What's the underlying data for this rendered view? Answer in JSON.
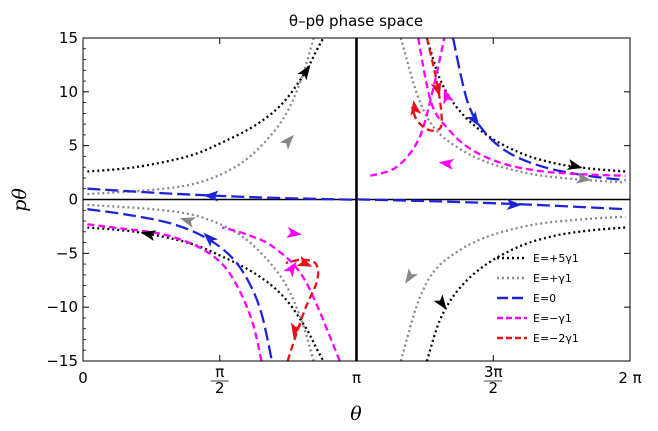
{
  "chart_data": {
    "type": "line",
    "title": "θ–pθ phase space",
    "xlabel": "θ",
    "ylabel": "pθ",
    "xlim": [
      0,
      6.2832
    ],
    "ylim": [
      -15,
      15
    ],
    "x_ticks": [
      {
        "value": 0,
        "label": "0"
      },
      {
        "value": 1.5708,
        "label": "π/2"
      },
      {
        "value": 3.1416,
        "label": "π"
      },
      {
        "value": 4.7124,
        "label": "3π/2"
      },
      {
        "value": 6.2832,
        "label": "2 π"
      }
    ],
    "y_ticks": [
      -15,
      -10,
      -5,
      0,
      5,
      10,
      15
    ],
    "legend_position": "bottom-right",
    "series": [
      {
        "name": "E=+5γ1",
        "color": "#000000",
        "dash": "dotted",
        "curves": [
          {
            "x": [
              0.05,
              0.6,
              1.2,
              1.6,
              2.0,
              2.3,
              2.55,
              2.68,
              2.76
            ],
            "y": [
              2.6,
              3.0,
              4.0,
              5.3,
              7.0,
              9.0,
              11.8,
              13.8,
              15
            ]
          },
          {
            "x": [
              3.95,
              4.1,
              4.3,
              4.6,
              5.0,
              5.4,
              5.8,
              6.23
            ],
            "y": [
              15,
              11.2,
              8.5,
              6.2,
              4.4,
              3.4,
              2.9,
              2.6
            ]
          },
          {
            "x": [
              0.05,
              0.6,
              1.2,
              1.6,
              2.0,
              2.3,
              2.55,
              2.68,
              2.76
            ],
            "y": [
              -2.6,
              -3.0,
              -4.0,
              -5.3,
              -7.0,
              -9.0,
              -11.8,
              -13.8,
              -15
            ]
          },
          {
            "x": [
              3.95,
              4.1,
              4.3,
              4.6,
              5.0,
              5.4,
              5.8,
              6.23
            ],
            "y": [
              -15,
              -11.2,
              -8.5,
              -6.2,
              -4.4,
              -3.4,
              -2.9,
              -2.6
            ]
          }
        ],
        "arrows": [
          {
            "at": [
              2.5,
              11.2
            ],
            "to": [
              2.62,
              12.6
            ]
          },
          {
            "at": [
              5.55,
              3.3
            ],
            "to": [
              5.75,
              2.9
            ]
          },
          {
            "at": [
              0.85,
              -3.4
            ],
            "to": [
              0.65,
              -3.0
            ]
          },
          {
            "at": [
              4.05,
              -8.8
            ],
            "to": [
              4.2,
              -10.5
            ]
          }
        ]
      },
      {
        "name": "E=+γ1",
        "color": "#888888",
        "dash": "dotted",
        "curves": [
          {
            "x": [
              0.05,
              0.8,
              1.3,
              1.7,
              2.0,
              2.3,
              2.5,
              2.65
            ],
            "y": [
              0.5,
              0.9,
              1.5,
              2.8,
              4.6,
              7.5,
              11.0,
              15
            ]
          },
          {
            "x": [
              3.65,
              3.85,
              4.05,
              4.35,
              4.7,
              5.2,
              5.8,
              6.23
            ],
            "y": [
              15,
              9.5,
              6.5,
              4.6,
              3.3,
              2.3,
              1.8,
              1.6
            ]
          },
          {
            "x": [
              0.05,
              0.8,
              1.3,
              1.7,
              2.0,
              2.3,
              2.5,
              2.65
            ],
            "y": [
              -0.5,
              -0.9,
              -1.5,
              -2.8,
              -4.6,
              -7.5,
              -11.0,
              -15
            ]
          },
          {
            "x": [
              3.65,
              3.85,
              4.05,
              4.35,
              4.7,
              5.2,
              5.8,
              6.23
            ],
            "y": [
              -15,
              -9.5,
              -6.5,
              -4.6,
              -3.3,
              -2.3,
              -1.8,
              -1.6
            ]
          }
        ],
        "arrows": [
          {
            "at": [
              2.3,
              4.9
            ],
            "to": [
              2.42,
              6.0
            ]
          },
          {
            "at": [
              5.65,
              2.0
            ],
            "to": [
              5.85,
              1.8
            ]
          },
          {
            "at": [
              1.3,
              -2.2
            ],
            "to": [
              1.1,
              -1.7
            ]
          },
          {
            "at": [
              3.8,
              -6.6
            ],
            "to": [
              3.7,
              -7.8
            ]
          }
        ]
      },
      {
        "name": "E=0",
        "color": "#1f24d9",
        "dash": "long",
        "curves": [
          {
            "x": [
              0.05,
              1.0,
              2.0,
              3.0,
              3.2,
              4.2,
              5.2,
              6.23
            ],
            "y": [
              1.0,
              0.55,
              0.2,
              0.0,
              0.0,
              -0.2,
              -0.5,
              -0.9
            ]
          },
          {
            "x": [
              4.25,
              4.42,
              4.62,
              4.9,
              5.3,
              5.8,
              6.23
            ],
            "y": [
              15,
              9.0,
              6.2,
              4.3,
              3.0,
              2.2,
              1.8
            ]
          },
          {
            "x": [
              0.05,
              0.5,
              1.0,
              1.4,
              1.7,
              1.9,
              2.05,
              2.17
            ],
            "y": [
              -0.9,
              -1.4,
              -2.2,
              -3.5,
              -5.3,
              -7.6,
              -10.6,
              -15
            ]
          }
        ],
        "arrows": [
          {
            "at": [
              1.6,
              0.3
            ],
            "to": [
              1.35,
              0.38
            ]
          },
          {
            "at": [
              4.8,
              -0.45
            ],
            "to": [
              5.1,
              -0.52
            ]
          },
          {
            "at": [
              4.45,
              8.0
            ],
            "to": [
              4.55,
              6.8
            ]
          },
          {
            "at": [
              1.5,
              -4.0
            ],
            "to": [
              1.4,
              -3.2
            ]
          }
        ]
      },
      {
        "name": "E=−γ1",
        "color": "#ff00ff",
        "dash": "dashed",
        "curves": [
          {
            "x": [
              3.85,
              4.0,
              4.2,
              4.45,
              4.8,
              5.2,
              5.6,
              6.23
            ],
            "y": [
              15,
              9.0,
              6.5,
              4.7,
              3.4,
              2.7,
              2.4,
              2.2
            ]
          },
          {
            "x": [
              0.05,
              0.45,
              0.9,
              1.3,
              1.6,
              1.8,
              1.95,
              2.05
            ],
            "y": [
              -2.3,
              -2.7,
              -3.2,
              -4.3,
              -6.0,
              -8.5,
              -11.5,
              -15
            ]
          },
          {
            "x": [
              3.3,
              3.6,
              3.85,
              4.0,
              4.15
            ],
            "y": [
              2.2,
              3.0,
              5.5,
              9.5,
              15
            ]
          },
          {
            "x": [
              2.95,
              2.55,
              2.2,
              1.9,
              1.6
            ],
            "y": [
              -15,
              -7.5,
              -4.5,
              -3.3,
              -2.6
            ]
          }
        ],
        "arrows": [
          {
            "at": [
              4.3,
              3.2
            ],
            "to": [
              4.05,
              3.5
            ]
          },
          {
            "at": [
              2.3,
              -3.0
            ],
            "to": [
              2.55,
              -3.3
            ]
          },
          {
            "at": [
              4.2,
              9.0
            ],
            "to": [
              4.15,
              10.2
            ]
          },
          {
            "at": [
              2.35,
              -7.0
            ],
            "to": [
              2.45,
              -5.8
            ]
          }
        ]
      },
      {
        "name": "E=−2γ1",
        "color": "#e8111a",
        "dash": "dashed",
        "curves": [
          {
            "x": [
              3.95,
              4.05,
              4.1,
              4.12,
              4.1,
              4.0,
              3.9,
              3.82,
              3.78
            ],
            "y": [
              15,
              11.5,
              9.2,
              7.4,
              6.6,
              6.4,
              6.8,
              7.6,
              8.6
            ]
          },
          {
            "x": [
              2.35,
              2.45,
              2.55,
              2.62,
              2.68,
              2.7,
              2.65,
              2.5,
              2.33
            ],
            "y": [
              -15,
              -12.5,
              -10.2,
              -8.9,
              -7.8,
              -6.6,
              -5.8,
              -5.6,
              -5.9
            ]
          }
        ],
        "arrows": [
          {
            "at": [
              4.05,
              11.0
            ],
            "to": [
              4.1,
              9.5
            ]
          },
          {
            "at": [
              3.82,
              8.0
            ],
            "to": [
              3.8,
              9.0
            ]
          },
          {
            "at": [
              2.45,
              -11.5
            ],
            "to": [
              2.42,
              -12.8
            ]
          },
          {
            "at": [
              2.45,
              -5.6
            ],
            "to": [
              2.65,
              -6.3
            ]
          }
        ]
      }
    ]
  }
}
